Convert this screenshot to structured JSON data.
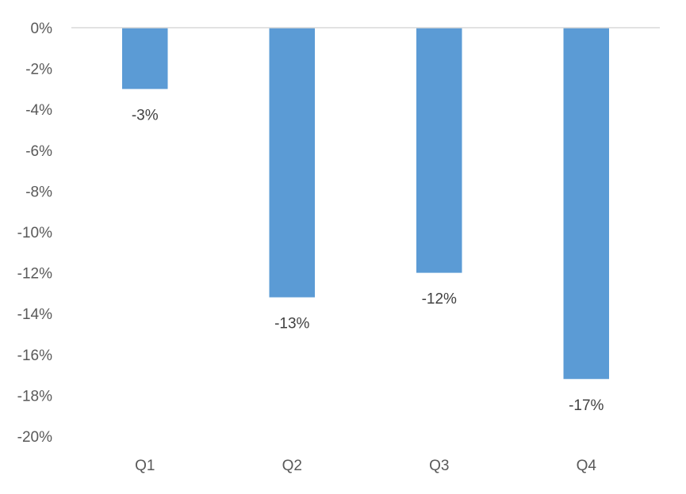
{
  "chart_data": {
    "type": "bar",
    "categories": [
      "Q1",
      "Q2",
      "Q3",
      "Q4"
    ],
    "values": [
      -3,
      -13.2,
      -12,
      -17.2
    ],
    "data_labels": [
      "-3%",
      "-13%",
      "-12%",
      "-17%"
    ],
    "y_ticks": [
      {
        "value": 0,
        "label": "0%"
      },
      {
        "value": -2,
        "label": "-2%"
      },
      {
        "value": -4,
        "label": "-4%"
      },
      {
        "value": -6,
        "label": "-6%"
      },
      {
        "value": -8,
        "label": "-8%"
      },
      {
        "value": -10,
        "label": "-10%"
      },
      {
        "value": -12,
        "label": "-12%"
      },
      {
        "value": -14,
        "label": "-14%"
      },
      {
        "value": -16,
        "label": "-16%"
      },
      {
        "value": -18,
        "label": "-18%"
      },
      {
        "value": -20,
        "label": "-20%"
      }
    ],
    "ylim": [
      -20,
      0
    ],
    "grid": false,
    "legend": "none",
    "bar_color": "#5b9bd5",
    "axis_color": "#d9d9d9"
  }
}
